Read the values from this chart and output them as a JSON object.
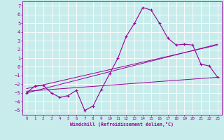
{
  "xlabel": "Windchill (Refroidissement éolien,°C)",
  "bg_color": "#c8ecec",
  "grid_color": "#ffffff",
  "line_color": "#990099",
  "xlim": [
    -0.5,
    23.5
  ],
  "ylim": [
    -5.5,
    7.5
  ],
  "xticks": [
    0,
    1,
    2,
    3,
    4,
    5,
    6,
    7,
    8,
    9,
    10,
    11,
    12,
    13,
    14,
    15,
    16,
    17,
    18,
    19,
    20,
    21,
    22,
    23
  ],
  "yticks": [
    -5,
    -4,
    -3,
    -2,
    -1,
    0,
    1,
    2,
    3,
    4,
    5,
    6,
    7
  ],
  "main_x": [
    0,
    1,
    2,
    3,
    4,
    5,
    6,
    7,
    8,
    9,
    10,
    11,
    12,
    13,
    14,
    15,
    16,
    17,
    18,
    19,
    20,
    21,
    22,
    23
  ],
  "main_y": [
    -3.0,
    -2.2,
    -2.1,
    -3.0,
    -3.5,
    -3.3,
    -2.7,
    -5.0,
    -4.5,
    -2.6,
    -0.8,
    1.0,
    3.5,
    5.0,
    6.8,
    6.5,
    5.0,
    3.3,
    2.5,
    2.6,
    2.5,
    0.3,
    0.1,
    -1.2
  ],
  "trend1_x": [
    0,
    23
  ],
  "trend1_y": [
    -2.8,
    -1.2
  ],
  "trend2_x": [
    0,
    23
  ],
  "trend2_y": [
    -2.5,
    2.5
  ],
  "trend3_x": [
    0,
    23
  ],
  "trend3_y": [
    -3.0,
    2.6
  ]
}
